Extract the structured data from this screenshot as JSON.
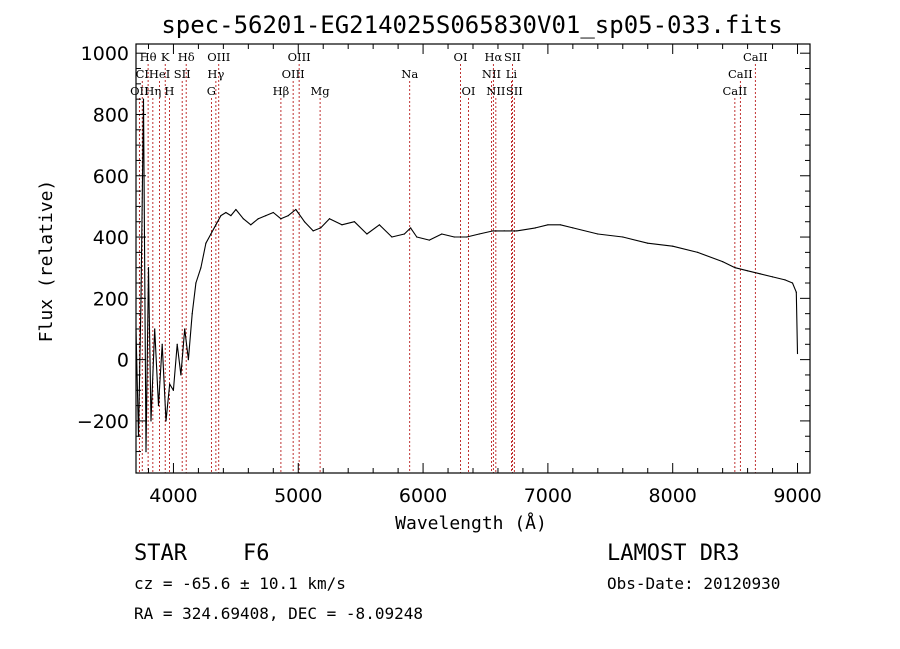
{
  "chart_data": {
    "type": "line",
    "title": "spec-56201-EG214025S065830V01_sp05-033.fits",
    "xlabel": "Wavelength (Å)",
    "ylabel": "Flux (relative)",
    "xlim": [
      3700,
      9100
    ],
    "ylim": [
      -370,
      1030
    ],
    "xticks": [
      4000,
      5000,
      6000,
      7000,
      8000,
      9000
    ],
    "yticks": [
      -200,
      0,
      200,
      400,
      600,
      800,
      1000
    ],
    "series": [
      {
        "name": "spectrum",
        "x": [
          3700,
          3720,
          3740,
          3760,
          3780,
          3800,
          3820,
          3850,
          3880,
          3910,
          3940,
          3970,
          4000,
          4030,
          4060,
          4090,
          4120,
          4150,
          4180,
          4220,
          4260,
          4300,
          4340,
          4380,
          4420,
          4460,
          4500,
          4560,
          4620,
          4680,
          4740,
          4800,
          4860,
          4920,
          4980,
          5050,
          5120,
          5180,
          5250,
          5350,
          5450,
          5550,
          5650,
          5750,
          5850,
          5900,
          5950,
          6050,
          6150,
          6250,
          6350,
          6450,
          6560,
          6650,
          6750,
          6900,
          7000,
          7100,
          7200,
          7400,
          7600,
          7800,
          8000,
          8200,
          8400,
          8500,
          8600,
          8700,
          8800,
          8900,
          8960,
          8990,
          9000
        ],
        "y": [
          100,
          -250,
          200,
          850,
          -300,
          300,
          -200,
          100,
          -150,
          50,
          -200,
          -80,
          -100,
          50,
          -50,
          100,
          0,
          150,
          250,
          300,
          380,
          410,
          440,
          470,
          480,
          470,
          490,
          460,
          440,
          460,
          470,
          480,
          460,
          470,
          490,
          450,
          420,
          430,
          460,
          440,
          450,
          410,
          440,
          400,
          410,
          430,
          400,
          390,
          410,
          400,
          400,
          410,
          420,
          420,
          420,
          430,
          440,
          440,
          430,
          410,
          400,
          380,
          370,
          350,
          320,
          300,
          290,
          280,
          270,
          260,
          250,
          220,
          20
        ]
      }
    ],
    "line_markers": [
      {
        "label": "Hθ",
        "wavelength": 3797,
        "row": 1
      },
      {
        "label": "K",
        "wavelength": 3934,
        "row": 1
      },
      {
        "label": "Hδ",
        "wavelength": 4102,
        "row": 1
      },
      {
        "label": "OIII",
        "wavelength": 4363,
        "row": 1
      },
      {
        "label": "OIII",
        "wavelength": 5007,
        "row": 1
      },
      {
        "label": "OI",
        "wavelength": 6300,
        "row": 1
      },
      {
        "label": "Hα",
        "wavelength": 6563,
        "row": 1
      },
      {
        "label": "SII",
        "wavelength": 6716,
        "row": 1
      },
      {
        "label": "CaII",
        "wavelength": 8662,
        "row": 1
      },
      {
        "label": "CI",
        "wavelength": 3750,
        "row": 2
      },
      {
        "label": "HeI",
        "wavelength": 3889,
        "row": 2
      },
      {
        "label": "SII",
        "wavelength": 4070,
        "row": 2
      },
      {
        "label": "Hγ",
        "wavelength": 4340,
        "row": 2
      },
      {
        "label": "OIII",
        "wavelength": 4959,
        "row": 2
      },
      {
        "label": "Na",
        "wavelength": 5893,
        "row": 2
      },
      {
        "label": "NII",
        "wavelength": 6548,
        "row": 2
      },
      {
        "label": "Li",
        "wavelength": 6708,
        "row": 2
      },
      {
        "label": "CaII",
        "wavelength": 8542,
        "row": 2
      },
      {
        "label": "OII",
        "wavelength": 3727,
        "row": 3
      },
      {
        "label": "Hη",
        "wavelength": 3835,
        "row": 3
      },
      {
        "label": "H",
        "wavelength": 3968,
        "row": 3
      },
      {
        "label": "G",
        "wavelength": 4304,
        "row": 3
      },
      {
        "label": "Hβ",
        "wavelength": 4861,
        "row": 3
      },
      {
        "label": "Mg",
        "wavelength": 5175,
        "row": 3
      },
      {
        "label": "OI",
        "wavelength": 6364,
        "row": 3
      },
      {
        "label": "NII",
        "wavelength": 6583,
        "row": 3
      },
      {
        "label": "SII",
        "wavelength": 6731,
        "row": 3
      },
      {
        "label": "CaII",
        "wavelength": 8498,
        "row": 3
      }
    ],
    "marker_color": "#b00000",
    "line_color": "#000000"
  },
  "info": {
    "class": "STAR",
    "subclass": "F6",
    "survey": "LAMOST DR3",
    "cz": "cz = -65.6 ± 10.1 km/s",
    "obs_date": "Obs-Date: 20120930",
    "radec": "RA = 324.69408, DEC =  -8.09248"
  }
}
